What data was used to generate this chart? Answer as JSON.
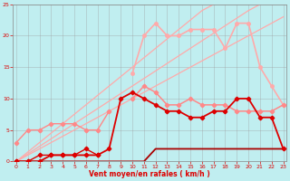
{
  "x": [
    0,
    1,
    2,
    3,
    4,
    5,
    6,
    7,
    8,
    9,
    10,
    11,
    12,
    13,
    14,
    15,
    16,
    17,
    18,
    19,
    20,
    21,
    22,
    23
  ],
  "bg_color": "#c0eef0",
  "grid_color": "#999999",
  "xlabel": "Vent moyen/en rafales ( km/h )",
  "tick_color": "#dd0000",
  "line_color_dark": "#dd0000",
  "line_color_mid": "#ff4444",
  "line_color_light": "#ffaaaa",
  "xlim": [
    0,
    23
  ],
  "ylim": [
    0,
    25
  ],
  "yticks": [
    0,
    5,
    10,
    15,
    20,
    25
  ],
  "ref_line1": [
    0,
    1.0,
    2.0,
    3.0,
    4.0,
    5.0,
    6.0,
    7.0,
    8.0,
    9.0,
    10.0,
    11.0,
    12.0,
    13.0,
    14.0,
    15.0,
    16.0,
    17.0,
    18.0,
    19.0,
    20.0,
    21.0,
    22.0,
    23.0
  ],
  "ref_line2": [
    0,
    1.2,
    2.4,
    3.6,
    4.8,
    6.0,
    7.2,
    8.4,
    9.6,
    10.8,
    12.0,
    13.2,
    14.4,
    15.6,
    16.8,
    18.0,
    19.2,
    20.4,
    21.6,
    22.8,
    24.0,
    25.0,
    null,
    null
  ],
  "ref_line3": [
    0,
    1.5,
    3.0,
    4.5,
    6.0,
    7.5,
    9.0,
    10.5,
    12.0,
    13.5,
    15.0,
    16.5,
    18.0,
    19.5,
    21.0,
    22.5,
    24.0,
    25.0,
    null,
    null,
    null,
    null,
    null,
    null
  ],
  "line_upper_light": [
    null,
    null,
    null,
    null,
    null,
    null,
    null,
    null,
    null,
    null,
    14,
    20,
    22,
    20,
    20,
    21,
    21,
    21,
    18,
    22,
    22,
    15,
    12,
    9
  ],
  "line_mid_light": [
    null,
    null,
    null,
    null,
    null,
    null,
    null,
    null,
    null,
    null,
    10,
    12,
    11,
    9,
    9,
    10,
    9,
    9,
    9,
    8,
    8,
    8,
    8,
    9
  ],
  "line_dark_red": [
    0,
    0,
    0,
    1,
    1,
    1,
    1,
    1,
    2,
    10,
    11,
    10,
    9,
    8,
    8,
    7,
    7,
    8,
    8,
    10,
    10,
    7,
    7,
    2
  ],
  "line_flat": [
    0,
    0,
    0,
    0,
    0,
    0,
    0,
    0,
    0,
    0,
    0,
    0,
    2,
    2,
    2,
    2,
    2,
    2,
    2,
    2,
    2,
    2,
    2,
    2
  ],
  "line_short1_x": [
    0,
    1,
    2,
    3,
    4,
    5,
    6,
    7
  ],
  "line_short1_y": [
    0,
    0,
    1,
    1,
    1,
    1,
    2,
    1
  ],
  "line_short2_x": [
    0,
    1,
    2,
    3,
    4,
    5,
    6,
    7,
    8
  ],
  "line_short2_y": [
    3,
    5,
    5,
    6,
    6,
    6,
    5,
    5,
    8
  ]
}
